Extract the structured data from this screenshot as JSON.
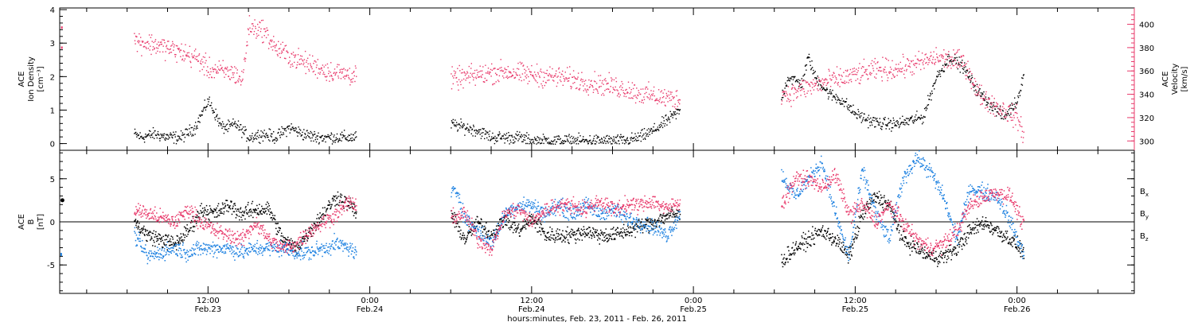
{
  "colors": {
    "black": "#000000",
    "pink": "#e8386a",
    "blue": "#1a7fe0"
  },
  "xaxis": {
    "title": "hours:minutes, Feb. 23, 2011 - Feb. 26, 2011",
    "ticks": [
      {
        "h": 12,
        "time": "12:00",
        "date": "Feb.23"
      },
      {
        "h": 24,
        "time": "0:00",
        "date": "Feb.24"
      },
      {
        "h": 36,
        "time": "12:00",
        "date": "Feb.24"
      },
      {
        "h": 48,
        "time": "0:00",
        "date": "Feb.25"
      },
      {
        "h": 60,
        "time": "12:00",
        "date": "Feb.25"
      },
      {
        "h": 72,
        "time": "0:00",
        "date": "Feb.26"
      }
    ],
    "range_hours": [
      1.0,
      80.7
    ]
  },
  "chart_data": [
    {
      "type": "scatter",
      "panel": "top",
      "ylabel_left": [
        "ACE",
        "Ion Density",
        "[cm⁻³]"
      ],
      "ylabel_right": [
        "ACE",
        "Velocity",
        "[km/s]"
      ],
      "ylim_left": [
        -0.2,
        4.05
      ],
      "ylim_right": [
        292,
        414
      ],
      "yticks_left": [
        "0",
        "1",
        "2",
        "3",
        "4"
      ],
      "yticks_right": [
        "300",
        "320",
        "340",
        "360",
        "380",
        "400"
      ],
      "series": [
        {
          "color": "#000000",
          "axis": "left",
          "segments": [
            {
              "x": [
                6.5,
                7,
                8,
                9,
                10,
                11,
                11.5,
                12,
                12.5,
                13,
                13.5,
                14,
                15,
                16,
                17,
                18,
                19,
                20,
                21,
                22,
                23
              ],
              "y": [
                0.3,
                0.2,
                0.3,
                0.2,
                0.2,
                0.5,
                0.9,
                1.3,
                0.9,
                0.5,
                0.5,
                0.6,
                0.2,
                0.3,
                0.2,
                0.5,
                0.3,
                0.2,
                0.2,
                0.2,
                0.2
              ]
            },
            {
              "x": [
                30,
                31,
                32,
                33,
                34,
                35,
                36,
                37,
                38,
                39,
                40,
                41,
                42,
                43,
                44,
                45,
                46,
                47
              ],
              "y": [
                0.6,
                0.5,
                0.4,
                0.2,
                0.2,
                0.2,
                0.1,
                0.1,
                0.1,
                0.1,
                0.1,
                0.1,
                0.1,
                0.1,
                0.2,
                0.4,
                0.7,
                1.0
              ]
            },
            {
              "x": [
                54.5,
                55,
                56,
                56.5,
                57,
                58,
                59,
                60,
                61,
                62,
                63,
                64,
                65,
                66,
                67,
                68,
                69,
                70,
                71,
                72,
                72.5
              ],
              "y": [
                1.4,
                2.0,
                1.8,
                2.6,
                2.0,
                1.5,
                1.3,
                0.9,
                0.7,
                0.6,
                0.6,
                0.7,
                0.8,
                2.0,
                2.6,
                2.3,
                1.6,
                1.2,
                0.8,
                1.3,
                2.2
              ]
            }
          ]
        },
        {
          "color": "#e8386a",
          "axis": "right",
          "segments": [
            {
              "x": [
                6.5,
                7,
                8,
                9,
                10,
                11,
                11.5,
                12,
                13,
                14,
                14.5,
                15,
                16,
                16.5,
                17,
                18,
                19,
                20,
                21,
                22,
                23
              ],
              "y": [
                387,
                385,
                383,
                380,
                376,
                372,
                368,
                362,
                360,
                358,
                352,
                398,
                396,
                388,
                380,
                373,
                368,
                364,
                360,
                358,
                357
              ]
            },
            {
              "x": [
                30,
                31,
                32,
                33,
                34,
                35,
                36,
                37,
                38,
                39,
                40,
                41,
                42,
                43,
                44,
                45,
                46,
                47
              ],
              "y": [
                353,
                355,
                357,
                359,
                360,
                358,
                357,
                356,
                355,
                353,
                351,
                349,
                347,
                345,
                341,
                339,
                337,
                336
              ]
            },
            {
              "x": [
                54.5,
                55,
                56,
                57,
                58,
                59,
                60,
                61,
                62,
                63,
                64,
                65,
                66,
                67,
                68,
                68.5,
                69,
                70,
                71,
                72,
                72.5
              ],
              "y": [
                342,
                340,
                345,
                348,
                352,
                354,
                357,
                360,
                362,
                362,
                365,
                368,
                372,
                370,
                368,
                358,
                342,
                333,
                327,
                320,
                305
              ]
            }
          ]
        }
      ]
    },
    {
      "type": "scatter",
      "panel": "bottom",
      "ylabel_left": [
        "ACE",
        "B",
        "[nT]"
      ],
      "ylim": [
        -8.3,
        8.3
      ],
      "yticks": [
        "-5",
        "0",
        "5"
      ],
      "zero_line": true,
      "legend": {
        "placement": "right",
        "entries": [
          {
            "label": "B",
            "sub": "x",
            "color": "#000000"
          },
          {
            "label": "B",
            "sub": "y",
            "color": "#1a7fe0"
          },
          {
            "label": "B",
            "sub": "z",
            "color": "#e8386a"
          }
        ]
      },
      "series": [
        {
          "name": "Bx",
          "color": "#000000",
          "segments": [
            {
              "x": [
                6.5,
                7.5,
                8.5,
                9.5,
                10.5,
                11.5,
                12.5,
                13.5,
                14.5,
                15.5,
                16.5,
                17.5,
                18.5,
                19.5,
                20.5,
                21.5,
                22.5,
                23
              ],
              "y": [
                0.0,
                -1.5,
                -2.0,
                -2.5,
                -1.0,
                1.5,
                1.0,
                2.0,
                1.0,
                1.5,
                1.5,
                -2.0,
                -3.0,
                -1.0,
                1.0,
                3.0,
                2.0,
                1.0
              ]
            },
            {
              "x": [
                30,
                31,
                32,
                33,
                34,
                35,
                36,
                37,
                38,
                39,
                40,
                41,
                42,
                43,
                44,
                45,
                46,
                47
              ],
              "y": [
                1.0,
                -2.0,
                0.0,
                -1.5,
                0.5,
                -1.0,
                0.5,
                -1.5,
                -1.5,
                -1.5,
                -1.0,
                -1.5,
                -1.5,
                -1.0,
                -0.5,
                0.0,
                0.8,
                1.0
              ]
            },
            {
              "x": [
                54.5,
                55.5,
                56.5,
                57.5,
                58.5,
                59.5,
                60.5,
                61.5,
                62.5,
                63.5,
                64.5,
                65.5,
                66.5,
                67.5,
                68.5,
                69.5,
                70.5,
                71.5,
                72.5
              ],
              "y": [
                -4.5,
                -3.0,
                -2.0,
                -1.0,
                -2.0,
                -4.0,
                1.0,
                3.0,
                2.0,
                -2.0,
                -3.0,
                -4.0,
                -4.0,
                -3.0,
                -1.0,
                0.0,
                -1.0,
                -2.0,
                -3.5
              ]
            }
          ]
        },
        {
          "name": "By",
          "color": "#1a7fe0",
          "segments": [
            {
              "x": [
                6.5,
                7.5,
                8.5,
                9.5,
                10.5,
                11.5,
                12.5,
                13.5,
                14.5,
                15.5,
                16.5,
                17.5,
                18.5,
                19.5,
                20.5,
                21.5,
                22.5,
                23
              ],
              "y": [
                -1.5,
                -4.0,
                -3.5,
                -3.0,
                -3.5,
                -3.0,
                -3.0,
                -3.0,
                -3.5,
                -3.0,
                -3.0,
                -3.0,
                -3.5,
                -3.5,
                -3.0,
                -2.5,
                -3.0,
                -3.8
              ]
            },
            {
              "x": [
                30,
                30.5,
                31,
                32,
                33,
                34,
                35,
                36,
                37,
                38,
                39,
                40,
                41,
                42,
                43,
                44,
                45,
                46,
                47
              ],
              "y": [
                3.5,
                3.5,
                0.5,
                -1.0,
                -2.5,
                1.0,
                2.0,
                2.0,
                1.0,
                2.0,
                1.0,
                2.0,
                1.0,
                1.5,
                0.5,
                0.0,
                -0.5,
                -1.5,
                1.0
              ]
            },
            {
              "x": [
                54.5,
                55.5,
                56.5,
                57.5,
                58.5,
                59.5,
                60.5,
                61.5,
                62.5,
                63.5,
                64.5,
                65.5,
                66.5,
                67.5,
                68.5,
                69.5,
                70.5,
                71.5,
                72.5
              ],
              "y": [
                5.5,
                3.0,
                5.0,
                7.0,
                1.0,
                -4.0,
                6.0,
                1.0,
                -2.0,
                5.0,
                7.5,
                6.0,
                3.0,
                -2.0,
                4.0,
                3.5,
                3.0,
                0.0,
                -4.0
              ]
            }
          ]
        },
        {
          "name": "Bz",
          "color": "#e8386a",
          "segments": [
            {
              "x": [
                6.5,
                7.5,
                8.5,
                9.5,
                10.5,
                11.5,
                12.5,
                13.5,
                14.5,
                15.5,
                16.5,
                17.5,
                18.5,
                19.5,
                20.5,
                21.5,
                22.5,
                23
              ],
              "y": [
                1.5,
                1.0,
                0.5,
                0.0,
                1.5,
                0.0,
                -1.0,
                -1.5,
                -2.0,
                0.0,
                -2.0,
                -3.0,
                -2.5,
                -1.0,
                0.0,
                1.0,
                2.5,
                1.5
              ]
            },
            {
              "x": [
                30,
                31,
                32,
                33,
                34,
                35,
                36,
                37,
                38,
                39,
                40,
                41,
                42,
                43,
                44,
                45,
                46,
                47
              ],
              "y": [
                0.5,
                1.0,
                -2.0,
                -3.0,
                1.0,
                1.5,
                0.0,
                1.5,
                2.0,
                2.0,
                1.5,
                2.5,
                1.5,
                2.0,
                2.0,
                2.5,
                1.5,
                2.5
              ]
            },
            {
              "x": [
                54.5,
                55.5,
                56.5,
                57.5,
                58.5,
                59.5,
                60.5,
                61.5,
                62.5,
                63.5,
                64.5,
                65.5,
                66.5,
                67.5,
                68.5,
                69.5,
                70.5,
                71.5,
                72.5
              ],
              "y": [
                2.0,
                5.0,
                5.0,
                4.0,
                5.5,
                1.0,
                2.0,
                0.0,
                2.0,
                0.0,
                -2.0,
                -3.0,
                -2.5,
                -1.0,
                2.0,
                3.0,
                3.5,
                3.0,
                -0.5
              ]
            }
          ]
        }
      ]
    }
  ]
}
